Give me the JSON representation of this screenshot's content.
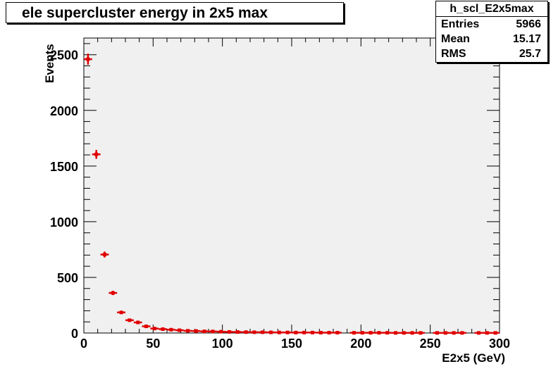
{
  "title": "ele supercluster energy in 2x5 max",
  "stats": {
    "name": "h_scl_E2x5max",
    "rows": [
      {
        "label": "Entries",
        "value": "5966"
      },
      {
        "label": "Mean",
        "value": "15.17"
      },
      {
        "label": "RMS",
        "value": "25.7"
      }
    ]
  },
  "colors": {
    "frame_bg": "#f0f0f0",
    "marker": "#e00000"
  },
  "chart_data": {
    "type": "scatter",
    "xlabel": "E2x5 (GeV)",
    "ylabel": "Events",
    "xlim": [
      0,
      300
    ],
    "ylim": [
      0,
      2650
    ],
    "xticks": [
      0,
      50,
      100,
      150,
      200,
      250,
      300
    ],
    "yticks": [
      0,
      500,
      1000,
      1500,
      2000,
      2500
    ],
    "bin_width": 6,
    "grid": false,
    "x": [
      3,
      9,
      15,
      21,
      27,
      33,
      39,
      45,
      51,
      57,
      63,
      69,
      75,
      81,
      87,
      93,
      99,
      105,
      111,
      117,
      123,
      129,
      135,
      141,
      147,
      153,
      159,
      165,
      171,
      177,
      183,
      189,
      195,
      201,
      207,
      213,
      219,
      225,
      231,
      237,
      243,
      249,
      255,
      261,
      267,
      273,
      279,
      285,
      291,
      297
    ],
    "y": [
      2460,
      1605,
      705,
      360,
      185,
      115,
      95,
      60,
      40,
      35,
      30,
      25,
      20,
      18,
      15,
      14,
      12,
      10,
      9,
      8,
      7,
      7,
      6,
      5,
      5,
      4,
      4,
      4,
      3,
      3,
      3,
      0,
      2,
      2,
      2,
      2,
      2,
      1,
      1,
      1,
      1,
      0,
      1,
      1,
      1,
      1,
      0,
      1,
      1,
      1
    ]
  }
}
